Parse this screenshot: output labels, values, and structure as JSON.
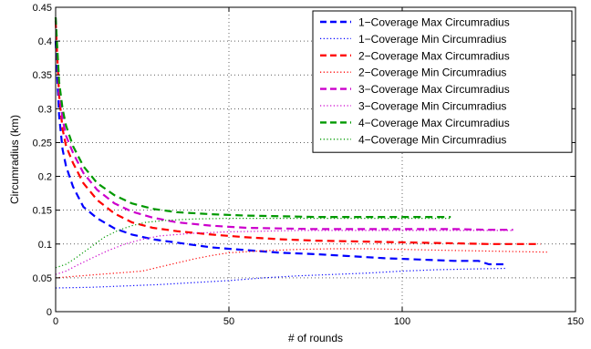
{
  "chart_data": {
    "type": "line",
    "title": "",
    "xlabel": "# of rounds",
    "ylabel": "Circumradius (km)",
    "xlim": [
      0,
      150
    ],
    "ylim": [
      0,
      0.45
    ],
    "xticks": [
      0,
      50,
      100,
      150
    ],
    "yticks": [
      0,
      0.05,
      0.1,
      0.15,
      0.2,
      0.25,
      0.3,
      0.35,
      0.4,
      0.45
    ],
    "xtick_labels": [
      "0",
      "50",
      "100",
      "150"
    ],
    "ytick_labels": [
      "0",
      "0.05",
      "0.1",
      "0.15",
      "0.2",
      "0.25",
      "0.3",
      "0.35",
      "0.4",
      "0.45"
    ],
    "grid": true,
    "legend_position": "top-right",
    "series": [
      {
        "name": "1−Coverage Max Circumradius",
        "color": "#0000ff",
        "style": "dashed",
        "points": [
          [
            0,
            0.4
          ],
          [
            1,
            0.29
          ],
          [
            2,
            0.24
          ],
          [
            3,
            0.215
          ],
          [
            5,
            0.185
          ],
          [
            8,
            0.155
          ],
          [
            12,
            0.138
          ],
          [
            17,
            0.123
          ],
          [
            22,
            0.114
          ],
          [
            28,
            0.107
          ],
          [
            35,
            0.102
          ],
          [
            45,
            0.095
          ],
          [
            55,
            0.091
          ],
          [
            65,
            0.087
          ],
          [
            75,
            0.085
          ],
          [
            85,
            0.082
          ],
          [
            95,
            0.079
          ],
          [
            105,
            0.077
          ],
          [
            115,
            0.075
          ],
          [
            122,
            0.075
          ],
          [
            125,
            0.07
          ],
          [
            130,
            0.07
          ]
        ]
      },
      {
        "name": "1−Coverage Min Circumradius",
        "color": "#0000ff",
        "style": "dotted",
        "points": [
          [
            0,
            0.035
          ],
          [
            10,
            0.036
          ],
          [
            20,
            0.038
          ],
          [
            30,
            0.04
          ],
          [
            40,
            0.043
          ],
          [
            50,
            0.046
          ],
          [
            60,
            0.05
          ],
          [
            70,
            0.053
          ],
          [
            80,
            0.055
          ],
          [
            90,
            0.057
          ],
          [
            100,
            0.06
          ],
          [
            110,
            0.062
          ],
          [
            120,
            0.063
          ],
          [
            130,
            0.064
          ]
        ]
      },
      {
        "name": "2−Coverage Max Circumradius",
        "color": "#ff0000",
        "style": "dashed",
        "points": [
          [
            0,
            0.43
          ],
          [
            1,
            0.32
          ],
          [
            2,
            0.27
          ],
          [
            3,
            0.245
          ],
          [
            5,
            0.22
          ],
          [
            8,
            0.19
          ],
          [
            12,
            0.165
          ],
          [
            17,
            0.145
          ],
          [
            22,
            0.132
          ],
          [
            28,
            0.124
          ],
          [
            35,
            0.119
          ],
          [
            45,
            0.114
          ],
          [
            55,
            0.11
          ],
          [
            65,
            0.107
          ],
          [
            75,
            0.105
          ],
          [
            85,
            0.104
          ],
          [
            95,
            0.103
          ],
          [
            105,
            0.102
          ],
          [
            115,
            0.101
          ],
          [
            125,
            0.1
          ],
          [
            140,
            0.1
          ]
        ]
      },
      {
        "name": "2−Coverage Min Circumradius",
        "color": "#ff0000",
        "style": "dotted",
        "points": [
          [
            0,
            0.05
          ],
          [
            5,
            0.052
          ],
          [
            10,
            0.054
          ],
          [
            15,
            0.056
          ],
          [
            20,
            0.058
          ],
          [
            25,
            0.06
          ],
          [
            30,
            0.066
          ],
          [
            35,
            0.072
          ],
          [
            40,
            0.078
          ],
          [
            45,
            0.083
          ],
          [
            50,
            0.087
          ],
          [
            60,
            0.09
          ],
          [
            70,
            0.092
          ],
          [
            80,
            0.093
          ],
          [
            90,
            0.093
          ],
          [
            100,
            0.092
          ],
          [
            110,
            0.091
          ],
          [
            120,
            0.09
          ],
          [
            130,
            0.089
          ],
          [
            142,
            0.088
          ]
        ]
      },
      {
        "name": "3−Coverage Max Circumradius",
        "color": "#cc00cc",
        "style": "dashed",
        "points": [
          [
            0,
            0.435
          ],
          [
            1,
            0.33
          ],
          [
            2,
            0.285
          ],
          [
            3,
            0.26
          ],
          [
            5,
            0.235
          ],
          [
            8,
            0.205
          ],
          [
            12,
            0.18
          ],
          [
            17,
            0.16
          ],
          [
            22,
            0.148
          ],
          [
            28,
            0.139
          ],
          [
            35,
            0.132
          ],
          [
            45,
            0.127
          ],
          [
            55,
            0.124
          ],
          [
            65,
            0.123
          ],
          [
            75,
            0.122
          ],
          [
            85,
            0.122
          ],
          [
            95,
            0.122
          ],
          [
            105,
            0.122
          ],
          [
            115,
            0.122
          ],
          [
            125,
            0.121
          ],
          [
            132,
            0.121
          ]
        ]
      },
      {
        "name": "3−Coverage Min Circumradius",
        "color": "#cc00cc",
        "style": "dotted",
        "points": [
          [
            0,
            0.055
          ],
          [
            3,
            0.06
          ],
          [
            6,
            0.068
          ],
          [
            10,
            0.078
          ],
          [
            15,
            0.09
          ],
          [
            20,
            0.1
          ],
          [
            25,
            0.107
          ],
          [
            30,
            0.112
          ],
          [
            40,
            0.116
          ],
          [
            50,
            0.118
          ],
          [
            60,
            0.119
          ],
          [
            70,
            0.12
          ],
          [
            80,
            0.12
          ],
          [
            90,
            0.12
          ],
          [
            100,
            0.12
          ],
          [
            110,
            0.12
          ],
          [
            120,
            0.12
          ],
          [
            132,
            0.12
          ]
        ]
      },
      {
        "name": "4−Coverage Max Circumradius",
        "color": "#009900",
        "style": "dashed",
        "points": [
          [
            0,
            0.435
          ],
          [
            1,
            0.34
          ],
          [
            2,
            0.3
          ],
          [
            3,
            0.275
          ],
          [
            5,
            0.245
          ],
          [
            8,
            0.215
          ],
          [
            12,
            0.19
          ],
          [
            17,
            0.172
          ],
          [
            22,
            0.16
          ],
          [
            28,
            0.152
          ],
          [
            35,
            0.147
          ],
          [
            45,
            0.144
          ],
          [
            55,
            0.142
          ],
          [
            65,
            0.141
          ],
          [
            75,
            0.14
          ],
          [
            85,
            0.14
          ],
          [
            95,
            0.14
          ],
          [
            105,
            0.14
          ],
          [
            114,
            0.14
          ]
        ]
      },
      {
        "name": "4−Coverage Min Circumradius",
        "color": "#009900",
        "style": "dotted",
        "points": [
          [
            0,
            0.065
          ],
          [
            3,
            0.07
          ],
          [
            6,
            0.08
          ],
          [
            10,
            0.095
          ],
          [
            14,
            0.11
          ],
          [
            18,
            0.12
          ],
          [
            22,
            0.127
          ],
          [
            26,
            0.132
          ],
          [
            32,
            0.135
          ],
          [
            40,
            0.137
          ],
          [
            50,
            0.138
          ],
          [
            60,
            0.138
          ],
          [
            70,
            0.138
          ],
          [
            80,
            0.138
          ],
          [
            90,
            0.138
          ],
          [
            100,
            0.138
          ],
          [
            114,
            0.138
          ]
        ]
      }
    ]
  }
}
